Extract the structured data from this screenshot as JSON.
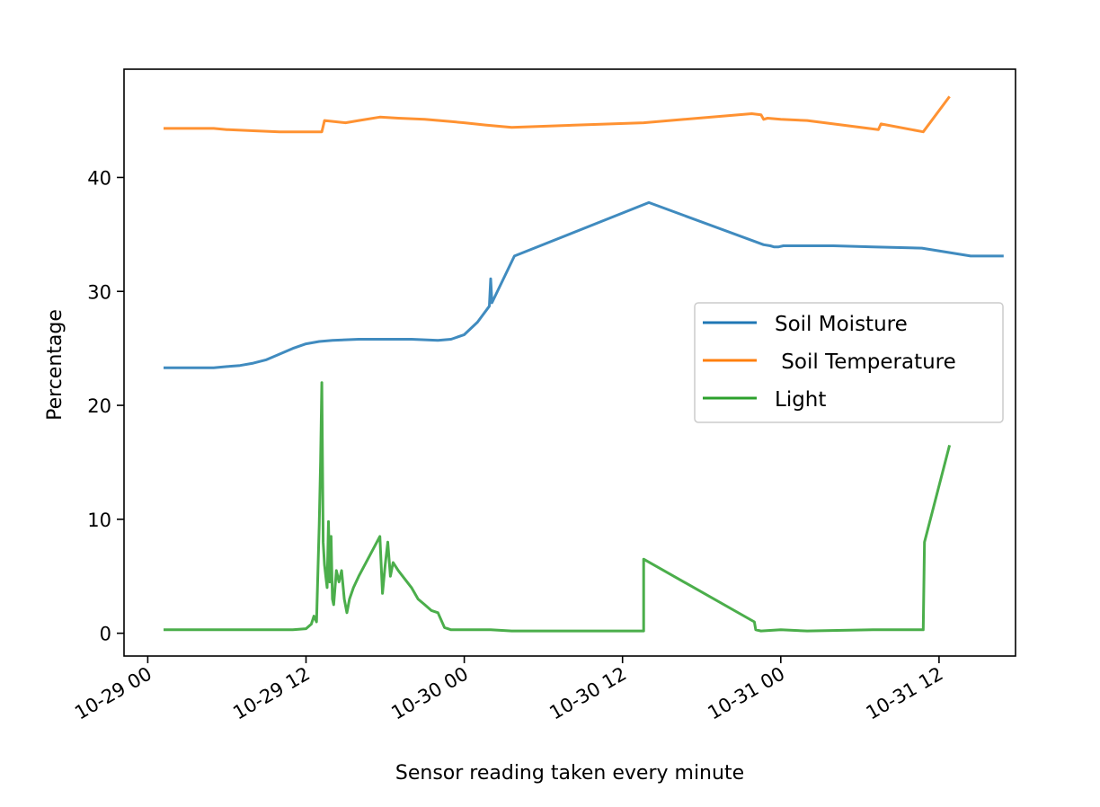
{
  "chart_data": {
    "type": "line",
    "title": "",
    "xlabel": "Sensor reading taken every minute",
    "ylabel": "Percentage",
    "xlim_hours": [
      -1.8,
      65.8
    ],
    "ylim": [
      -2.0,
      49.5
    ],
    "x_tick_hours": [
      0,
      12,
      24,
      36,
      48,
      60
    ],
    "x_tick_labels": [
      "10-29 00",
      "10-29 12",
      "10-30 00",
      "10-30 12",
      "10-31 00",
      "10-31 12"
    ],
    "y_ticks": [
      0,
      10,
      20,
      30,
      40
    ],
    "y_tick_labels": [
      "0",
      "10",
      "20",
      "30",
      "40"
    ],
    "legend_position": "center-right",
    "series": [
      {
        "name": "Soil Moisture",
        "color": "#1f77b4",
        "x_hours": [
          1.2,
          3,
          5,
          6,
          7,
          8,
          9,
          10,
          11,
          12,
          13,
          14,
          16,
          18,
          20,
          22,
          23,
          24,
          25,
          25.9,
          26,
          26.1,
          27.8,
          38,
          46.7,
          47.2,
          47.5,
          47.8,
          48.2,
          50,
          52,
          55,
          58.7,
          62.4,
          64.9
        ],
        "y": [
          23.3,
          23.3,
          23.3,
          23.4,
          23.5,
          23.7,
          24,
          24.5,
          25,
          25.4,
          25.6,
          25.7,
          25.8,
          25.8,
          25.8,
          25.7,
          25.8,
          26.2,
          27.3,
          28.7,
          31.1,
          29,
          33.1,
          37.8,
          34.1,
          34,
          33.9,
          33.9,
          34,
          34,
          34,
          33.9,
          33.8,
          33.1,
          33.1
        ]
      },
      {
        "name": " Soil Temperature",
        "color": "#ff7f0e",
        "x_hours": [
          1.2,
          3,
          5,
          6,
          8,
          10,
          12,
          13.2,
          13.4,
          15,
          16,
          17.6,
          19,
          21,
          23,
          24,
          25.6,
          27.6,
          37.6,
          45.8,
          46.5,
          46.7,
          47,
          48,
          50,
          55.4,
          55.6,
          58.8,
          60.8
        ],
        "y": [
          44.3,
          44.3,
          44.3,
          44.2,
          44.1,
          44.0,
          44.0,
          44.0,
          45.0,
          44.8,
          45.0,
          45.3,
          45.2,
          45.1,
          44.9,
          44.8,
          44.6,
          44.4,
          44.8,
          45.6,
          45.5,
          45.1,
          45.2,
          45.1,
          45.0,
          44.2,
          44.7,
          44.0,
          47.1
        ]
      },
      {
        "name": "Light",
        "color": "#2ca02c",
        "x_hours": [
          1.2,
          3,
          6,
          9,
          11,
          12,
          12.4,
          12.6,
          12.8,
          13.0,
          13.1,
          13.2,
          13.3,
          13.4,
          13.5,
          13.6,
          13.7,
          13.8,
          13.9,
          14.0,
          14.1,
          14.3,
          14.5,
          14.7,
          14.9,
          15.1,
          15.3,
          15.6,
          16.0,
          17.6,
          17.8,
          18.0,
          18.2,
          18.4,
          18.6,
          19.0,
          20.0,
          20.5,
          21.0,
          21.5,
          22.0,
          22.5,
          23.0,
          24.0,
          25.0,
          26.0,
          27.6,
          37.6,
          37.6,
          46.0,
          46.1,
          46.5,
          48.0,
          50.0,
          55.0,
          58.8,
          58.9,
          60.8
        ],
        "y": [
          0.3,
          0.3,
          0.3,
          0.3,
          0.3,
          0.4,
          0.8,
          1.5,
          1.0,
          9.5,
          15.0,
          22.0,
          8.0,
          6.0,
          5.0,
          4.0,
          9.8,
          4.5,
          8.5,
          3.0,
          2.5,
          5.5,
          4.5,
          5.5,
          3.0,
          1.8,
          3.0,
          4.0,
          5.0,
          8.5,
          3.5,
          6.0,
          8.0,
          5.0,
          6.2,
          5.5,
          4.0,
          3.0,
          2.5,
          2.0,
          1.8,
          0.5,
          0.3,
          0.3,
          0.3,
          0.3,
          0.2,
          0.2,
          6.5,
          1.0,
          0.3,
          0.2,
          0.3,
          0.2,
          0.3,
          0.3,
          8.0,
          16.5
        ]
      }
    ]
  }
}
